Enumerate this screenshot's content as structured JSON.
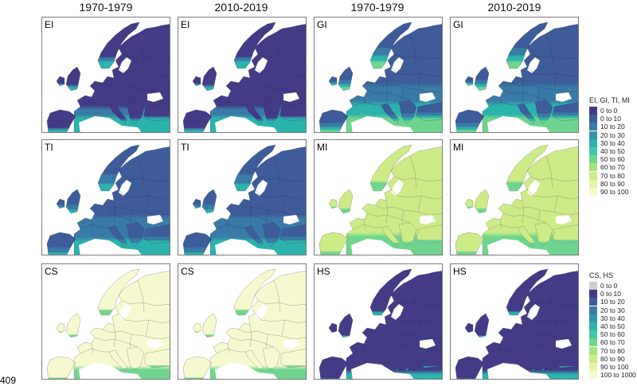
{
  "columns": [
    "1970-1979",
    "2010-2019",
    "1970-1979",
    "2010-2019"
  ],
  "panels": [
    {
      "label": "EI",
      "scheme": "EI"
    },
    {
      "label": "EI",
      "scheme": "EI"
    },
    {
      "label": "GI",
      "scheme": "GI"
    },
    {
      "label": "GI",
      "scheme": "GI"
    },
    {
      "label": "TI",
      "scheme": "TI"
    },
    {
      "label": "TI",
      "scheme": "TI"
    },
    {
      "label": "MI",
      "scheme": "MI"
    },
    {
      "label": "MI",
      "scheme": "MI"
    },
    {
      "label": "CS",
      "scheme": "CS"
    },
    {
      "label": "CS",
      "scheme": "CS"
    },
    {
      "label": "HS",
      "scheme": "HS"
    },
    {
      "label": "HS",
      "scheme": "HS"
    }
  ],
  "legend_top": {
    "title": "EI, GI, TI, MI",
    "items": [
      {
        "label": "0 to 0",
        "color": "#433b85"
      },
      {
        "label": "0 to 10",
        "color": "#3d5c99"
      },
      {
        "label": "10 to 20",
        "color": "#3a7aa6"
      },
      {
        "label": "20 to 30",
        "color": "#3296aa"
      },
      {
        "label": "30 to 40",
        "color": "#2cb3ad"
      },
      {
        "label": "40 to 50",
        "color": "#43c7a6"
      },
      {
        "label": "50 to 60",
        "color": "#6fd58e"
      },
      {
        "label": "60 to 70",
        "color": "#a4e37c"
      },
      {
        "label": "70 to 80",
        "color": "#cdeb86"
      },
      {
        "label": "80 to 90",
        "color": "#e6f3a6"
      },
      {
        "label": "90 to 100",
        "color": "#f6f9cd"
      }
    ]
  },
  "legend_bottom": {
    "title": "CS, HS",
    "items": [
      {
        "label": "0 to 0",
        "color": "#d0d0d0"
      },
      {
        "label": "0 to 10",
        "color": "#433b85"
      },
      {
        "label": "10 to 20",
        "color": "#3d5c99"
      },
      {
        "label": "20 to 30",
        "color": "#3a7aa6"
      },
      {
        "label": "30 to 40",
        "color": "#3296aa"
      },
      {
        "label": "40 to 50",
        "color": "#2cb3ad"
      },
      {
        "label": "50 to 60",
        "color": "#43c7a6"
      },
      {
        "label": "60 to 70",
        "color": "#6fd58e"
      },
      {
        "label": "70 to 80",
        "color": "#a4e37c"
      },
      {
        "label": "80 to 90",
        "color": "#cdeb86"
      },
      {
        "label": "90 to 100",
        "color": "#e6f3a6"
      },
      {
        "label": "100 to 1000",
        "color": "#f6f9cd"
      }
    ]
  },
  "line_number": "409",
  "colors": {
    "deep": "#433b85",
    "blue": "#3d5c99",
    "steel": "#3a7aa6",
    "teal": "#2cb3ad",
    "green": "#6fd58e",
    "lime": "#cdeb86",
    "pale": "#f6f9cd",
    "border": "#6e6e6e"
  }
}
